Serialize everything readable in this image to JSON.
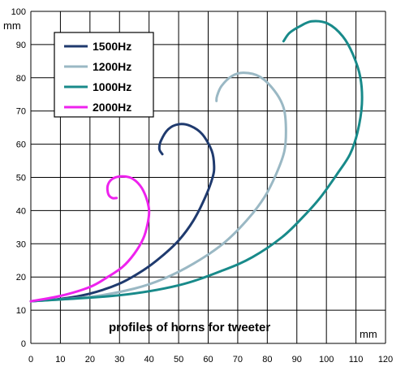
{
  "chart_data": {
    "type": "line",
    "title": "profiles of horns for tweeter",
    "xlabel": "mm",
    "ylabel": "mm",
    "xlim": [
      0,
      120
    ],
    "ylim": [
      0,
      100
    ],
    "x_ticks": [
      0,
      10,
      20,
      30,
      40,
      50,
      60,
      70,
      80,
      90,
      100,
      110,
      120
    ],
    "y_ticks": [
      0,
      10,
      20,
      30,
      40,
      50,
      60,
      70,
      80,
      90,
      100
    ],
    "grid": true,
    "legend_position": "top-left",
    "series": [
      {
        "name": "1500Hz",
        "color": "#1f3a6e",
        "points": [
          [
            0,
            12.7
          ],
          [
            10,
            13.4
          ],
          [
            20,
            15.0
          ],
          [
            30,
            18.0
          ],
          [
            38,
            22.0
          ],
          [
            44,
            26.0
          ],
          [
            50,
            31.0
          ],
          [
            55,
            37.0
          ],
          [
            59,
            44.0
          ],
          [
            61.5,
            50.0
          ],
          [
            62,
            53.5
          ],
          [
            61.2,
            58.0
          ],
          [
            58,
            63.0
          ],
          [
            54,
            65.5
          ],
          [
            50,
            66.0
          ],
          [
            46.5,
            64.5
          ],
          [
            44,
            61.0
          ],
          [
            43.5,
            58.5
          ],
          [
            44.5,
            57.0
          ]
        ]
      },
      {
        "name": "1200Hz",
        "color": "#9ab8c4",
        "points": [
          [
            0,
            12.7
          ],
          [
            20,
            14.0
          ],
          [
            35,
            16.5
          ],
          [
            45,
            19.5
          ],
          [
            55,
            24.0
          ],
          [
            65,
            30.0
          ],
          [
            73,
            37.0
          ],
          [
            79,
            44.0
          ],
          [
            83,
            51.0
          ],
          [
            85.8,
            58.0
          ],
          [
            86.3,
            65.0
          ],
          [
            85.5,
            71.0
          ],
          [
            82.5,
            76.0
          ],
          [
            77.5,
            80.3
          ],
          [
            72,
            81.5
          ],
          [
            68,
            80.5
          ],
          [
            64.5,
            77.5
          ],
          [
            63,
            74.5
          ],
          [
            62.8,
            73.0
          ]
        ]
      },
      {
        "name": "1000Hz",
        "color": "#188a8a",
        "points": [
          [
            0,
            12.7
          ],
          [
            30,
            14.5
          ],
          [
            50,
            17.5
          ],
          [
            65,
            22.0
          ],
          [
            75,
            26.0
          ],
          [
            85,
            32.0
          ],
          [
            92,
            38.0
          ],
          [
            98,
            44.0
          ],
          [
            104,
            51.5
          ],
          [
            108,
            57.0
          ],
          [
            110.5,
            63.5
          ],
          [
            112,
            72.0
          ],
          [
            111.5,
            80.0
          ],
          [
            109,
            87.0
          ],
          [
            105.5,
            92.5
          ],
          [
            100.5,
            96.3
          ],
          [
            95,
            97.0
          ],
          [
            91,
            95.5
          ],
          [
            87.5,
            93.5
          ],
          [
            85.5,
            91.0
          ]
        ]
      },
      {
        "name": "2000Hz",
        "color": "#ee22ee",
        "points": [
          [
            0,
            12.7
          ],
          [
            10,
            14.3
          ],
          [
            20,
            17.0
          ],
          [
            26,
            20.0
          ],
          [
            31,
            23.0
          ],
          [
            35,
            27.0
          ],
          [
            38,
            31.5
          ],
          [
            39.5,
            36.0
          ],
          [
            40,
            40.0
          ],
          [
            39,
            44.0
          ],
          [
            37,
            47.5
          ],
          [
            34,
            49.8
          ],
          [
            30.5,
            50.3
          ],
          [
            27.5,
            49.5
          ],
          [
            26,
            47.5
          ],
          [
            26.2,
            45.0
          ],
          [
            27.5,
            43.8
          ],
          [
            29,
            43.8
          ]
        ]
      }
    ]
  }
}
